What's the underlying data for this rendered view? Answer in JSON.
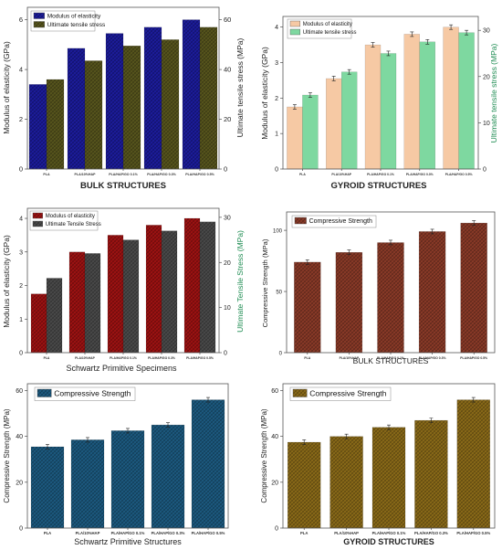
{
  "colors": {
    "bulk_modulus": "#1c1c9c",
    "bulk_uts": "#57551d",
    "gyroid_modulus": "#f6c9a4",
    "gyroid_uts": "#7ed8a0",
    "schwartz_modulus": "#9e1212",
    "schwartz_uts": "#4a4a4a",
    "bulk_cs": "#8a3a28",
    "schwartz_cs": "#1c5a80",
    "gyroid_cs": "#8a6a18",
    "left_axis_label": "#222222",
    "right_axis_label_gyroid": "#1e8c52",
    "right_axis_label_schwartz": "#1e8c52"
  },
  "chart_data": [
    {
      "type": "bar",
      "dual_axis": true,
      "categories": [
        "PLA",
        "PLA/10%HAP",
        "PLA/HAP/GO 0.1%",
        "PLA/HAP/GO 0.3%",
        "PLA/HAP/GO 0.5%"
      ],
      "series": [
        {
          "name": "Modulus of elasticity",
          "axis": "left",
          "values": [
            3.4,
            4.85,
            5.45,
            5.7,
            6.0
          ]
        },
        {
          "name": "Ultimate tensile stress",
          "axis": "right",
          "values": [
            36,
            43.5,
            49.5,
            52,
            57
          ]
        }
      ],
      "xlabel": "BULK STRUCTURES",
      "ylabel": "Modulus of elasticity (GPa)",
      "ylabel_right": "Ultimate tensile stress (MPa)",
      "ylim": [
        0,
        6.5
      ],
      "ylim_right": [
        0,
        65
      ],
      "yticks": [
        "0",
        "2",
        "4",
        "6"
      ],
      "yticks_right": [
        "0",
        "20",
        "40",
        "60"
      ],
      "legend": "top-left"
    },
    {
      "type": "bar",
      "dual_axis": true,
      "categories": [
        "PLA",
        "PLA/10%HAP",
        "PLA/HAP/GO 0.1%",
        "PLA/HAP/GO 0.3%",
        "PLA/HAP/GO 0.5%"
      ],
      "series": [
        {
          "name": "Modulus of elasticity",
          "axis": "left",
          "values": [
            1.75,
            2.55,
            3.5,
            3.8,
            4.0
          ]
        },
        {
          "name": "Ultimate tensile stress",
          "axis": "right",
          "values": [
            16,
            21,
            25,
            27.5,
            29.5
          ]
        }
      ],
      "xlabel": "GYROID STRUCTURES",
      "ylabel": "Modulus of elasticity (GPa)",
      "ylabel_right": "Ultimate tensile stress (MPa)",
      "ylim": [
        0,
        4.3
      ],
      "ylim_right": [
        0,
        33
      ],
      "yticks": [
        "0",
        "1",
        "2",
        "3",
        "4"
      ],
      "yticks_right": [
        "0",
        "10",
        "20",
        "30"
      ],
      "legend": "top-left"
    },
    {
      "type": "bar",
      "dual_axis": true,
      "categories": [
        "PLA",
        "PLA/10%HAP",
        "PLA/HAP/GO 0.1%",
        "PLA/HAP/GO 0.3%",
        "PLA/HAP/GO 0.5%"
      ],
      "series": [
        {
          "name": "Modulus of elasticity",
          "axis": "left",
          "values": [
            1.75,
            3.0,
            3.5,
            3.8,
            4.0
          ]
        },
        {
          "name": "Ultimate Tensile Stress",
          "axis": "right",
          "values": [
            16.5,
            22,
            25,
            27,
            29
          ]
        }
      ],
      "xlabel": "Schwartz Primitive Specimens",
      "ylabel": "Modulus of elasticity (GPa)",
      "ylabel_right": "Ultimate Tensile Stress (MPa)",
      "ylim": [
        0,
        4.3
      ],
      "ylim_right": [
        0,
        32
      ],
      "yticks": [
        "0",
        "1",
        "2",
        "3",
        "4"
      ],
      "yticks_right": [
        "0",
        "10",
        "20",
        "30"
      ],
      "legend": "top-left"
    },
    {
      "type": "bar",
      "categories": [
        "PLA",
        "PLA/10%HAP",
        "PLA/HAP/GO 0.1%",
        "PLA/HAP/GO 0.3%",
        "PLA/HAP/GO 0.5%"
      ],
      "series": [
        {
          "name": "Compressive Strength",
          "values": [
            74,
            82,
            90,
            99,
            106
          ]
        }
      ],
      "xlabel": "BULK STRUCTURES",
      "ylabel": "Compressive Strength (MPa)",
      "ylim": [
        0,
        115
      ],
      "yticks": [
        "0",
        "50",
        "100"
      ],
      "legend": "top-left"
    },
    {
      "type": "bar",
      "categories": [
        "PLA",
        "PLA/10%HAP",
        "PLA/HAP/GO 0.1%",
        "PLA/HAP/GO 0.3%",
        "PLA/HAP/GO 0.5%"
      ],
      "series": [
        {
          "name": "Compressive Strength",
          "values": [
            35.5,
            38.5,
            42.5,
            45,
            56
          ]
        }
      ],
      "xlabel": "Schwartz Primitive Structures",
      "ylabel": "Compressive Strength (MPa)",
      "ylim": [
        0,
        63
      ],
      "yticks": [
        "0",
        "20",
        "40",
        "60"
      ],
      "legend": "top-left"
    },
    {
      "type": "bar",
      "categories": [
        "PLA",
        "PLA/10%HAP",
        "PLA/HAP/GO 0.1%",
        "PLA/HAP/GO 0.3%",
        "PLA/HAP/GO 0.5%"
      ],
      "series": [
        {
          "name": "Compressive Strength",
          "values": [
            37.5,
            40,
            44,
            47,
            56
          ]
        }
      ],
      "xlabel": "GYROID STRUCTURES",
      "ylabel": "Compressive Strength (MPa)",
      "ylim": [
        0,
        63
      ],
      "yticks": [
        "0",
        "20",
        "40",
        "60"
      ],
      "legend": "top-left"
    }
  ]
}
